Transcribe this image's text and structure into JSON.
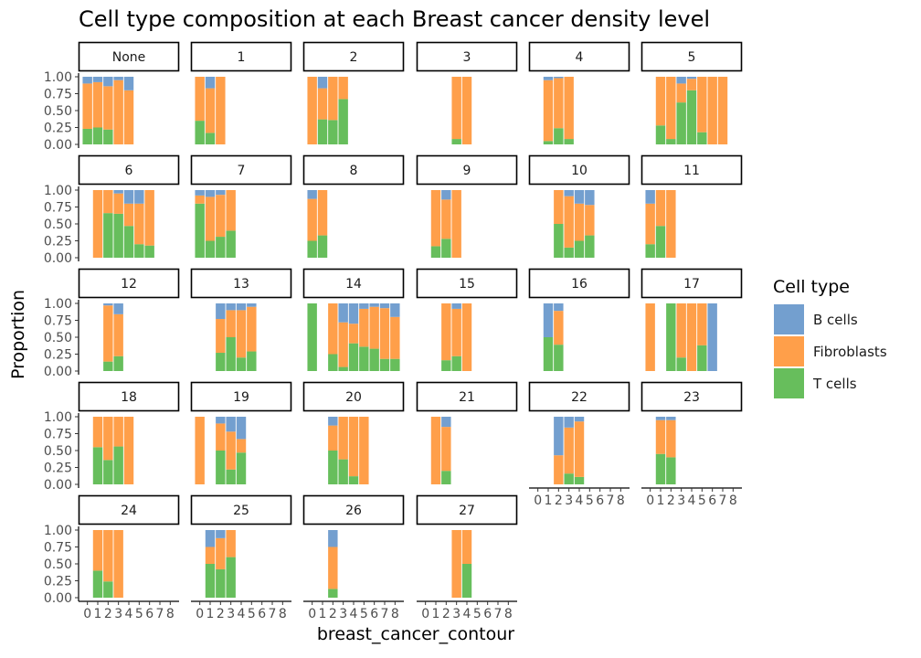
{
  "chart_data": {
    "type": "bar",
    "title": "Cell type composition at each Breast cancer density level",
    "xlabel": "breast_cancer_contour",
    "ylabel": "Proportion",
    "ylim": [
      0,
      1
    ],
    "yticks": [
      "0.00",
      "0.25",
      "0.50",
      "0.75",
      "1.00"
    ],
    "x_categories": [
      "0",
      "1",
      "2",
      "3",
      "4",
      "5",
      "6",
      "7",
      "8"
    ],
    "stacking_order_bottom_to_top": [
      "T cells",
      "Fibroblasts",
      "B cells"
    ],
    "legend": {
      "title": "Cell type",
      "position": "right",
      "entries": [
        {
          "name": "B cells",
          "color": "#739FCF"
        },
        {
          "name": "Fibroblasts",
          "color": "#FF9F4A"
        },
        {
          "name": "T cells",
          "color": "#67BE5C"
        }
      ]
    },
    "facet_layout": {
      "columns": 6,
      "rows": 5
    },
    "panels": [
      {
        "label": "None",
        "bars": [
          {
            "x": 0,
            "t": 0.23,
            "f": 0.67,
            "b": 0.1
          },
          {
            "x": 1,
            "t": 0.25,
            "f": 0.67,
            "b": 0.08
          },
          {
            "x": 2,
            "t": 0.22,
            "f": 0.64,
            "b": 0.14
          },
          {
            "x": 3,
            "t": 0.0,
            "f": 0.95,
            "b": 0.05
          },
          {
            "x": 4,
            "t": 0.0,
            "f": 0.8,
            "b": 0.2
          }
        ]
      },
      {
        "label": "1",
        "bars": [
          {
            "x": 0,
            "t": 0.35,
            "f": 0.65,
            "b": 0.0
          },
          {
            "x": 1,
            "t": 0.17,
            "f": 0.66,
            "b": 0.17
          },
          {
            "x": 2,
            "t": 0.0,
            "f": 1.0,
            "b": 0.0
          }
        ]
      },
      {
        "label": "2",
        "bars": [
          {
            "x": 0,
            "t": 0.0,
            "f": 1.0,
            "b": 0.0
          },
          {
            "x": 1,
            "t": 0.37,
            "f": 0.46,
            "b": 0.17
          },
          {
            "x": 2,
            "t": 0.36,
            "f": 0.64,
            "b": 0.0
          },
          {
            "x": 3,
            "t": 0.67,
            "f": 0.33,
            "b": 0.0
          }
        ]
      },
      {
        "label": "3",
        "bars": [
          {
            "x": 3,
            "t": 0.08,
            "f": 0.92,
            "b": 0.0
          },
          {
            "x": 4,
            "t": 0.0,
            "f": 1.0,
            "b": 0.0
          }
        ]
      },
      {
        "label": "4",
        "bars": [
          {
            "x": 1,
            "t": 0.05,
            "f": 0.9,
            "b": 0.05
          },
          {
            "x": 2,
            "t": 0.24,
            "f": 0.74,
            "b": 0.02
          },
          {
            "x": 3,
            "t": 0.08,
            "f": 0.92,
            "b": 0.0
          }
        ]
      },
      {
        "label": "5",
        "bars": [
          {
            "x": 1,
            "t": 0.28,
            "f": 0.72,
            "b": 0.0
          },
          {
            "x": 2,
            "t": 0.08,
            "f": 0.92,
            "b": 0.0
          },
          {
            "x": 3,
            "t": 0.62,
            "f": 0.28,
            "b": 0.1
          },
          {
            "x": 4,
            "t": 0.8,
            "f": 0.17,
            "b": 0.03
          },
          {
            "x": 5,
            "t": 0.18,
            "f": 0.82,
            "b": 0.0
          },
          {
            "x": 6,
            "t": 0.0,
            "f": 1.0,
            "b": 0.0
          },
          {
            "x": 7,
            "t": 0.0,
            "f": 1.0,
            "b": 0.0
          }
        ]
      },
      {
        "label": "6",
        "bars": [
          {
            "x": 1,
            "t": 0.0,
            "f": 1.0,
            "b": 0.0
          },
          {
            "x": 2,
            "t": 0.66,
            "f": 0.34,
            "b": 0.0
          },
          {
            "x": 3,
            "t": 0.65,
            "f": 0.3,
            "b": 0.05
          },
          {
            "x": 4,
            "t": 0.47,
            "f": 0.33,
            "b": 0.2
          },
          {
            "x": 5,
            "t": 0.2,
            "f": 0.6,
            "b": 0.2
          },
          {
            "x": 6,
            "t": 0.18,
            "f": 0.82,
            "b": 0.0
          }
        ]
      },
      {
        "label": "7",
        "bars": [
          {
            "x": 0,
            "t": 0.8,
            "f": 0.12,
            "b": 0.08
          },
          {
            "x": 1,
            "t": 0.25,
            "f": 0.65,
            "b": 0.1
          },
          {
            "x": 2,
            "t": 0.31,
            "f": 0.62,
            "b": 0.07
          },
          {
            "x": 3,
            "t": 0.4,
            "f": 0.6,
            "b": 0.0
          }
        ]
      },
      {
        "label": "8",
        "bars": [
          {
            "x": 0,
            "t": 0.25,
            "f": 0.62,
            "b": 0.13
          },
          {
            "x": 1,
            "t": 0.33,
            "f": 0.67,
            "b": 0.0
          }
        ]
      },
      {
        "label": "9",
        "bars": [
          {
            "x": 1,
            "t": 0.17,
            "f": 0.83,
            "b": 0.0
          },
          {
            "x": 2,
            "t": 0.28,
            "f": 0.58,
            "b": 0.14
          },
          {
            "x": 3,
            "t": 0.0,
            "f": 1.0,
            "b": 0.0
          }
        ]
      },
      {
        "label": "10",
        "bars": [
          {
            "x": 2,
            "t": 0.5,
            "f": 0.5,
            "b": 0.0
          },
          {
            "x": 3,
            "t": 0.15,
            "f": 0.76,
            "b": 0.09
          },
          {
            "x": 4,
            "t": 0.25,
            "f": 0.55,
            "b": 0.2
          },
          {
            "x": 5,
            "t": 0.33,
            "f": 0.45,
            "b": 0.22
          }
        ]
      },
      {
        "label": "11",
        "bars": [
          {
            "x": 0,
            "t": 0.2,
            "f": 0.6,
            "b": 0.2
          },
          {
            "x": 1,
            "t": 0.47,
            "f": 0.53,
            "b": 0.0
          },
          {
            "x": 2,
            "t": 0.0,
            "f": 1.0,
            "b": 0.0
          }
        ]
      },
      {
        "label": "12",
        "bars": [
          {
            "x": 2,
            "t": 0.14,
            "f": 0.83,
            "b": 0.03
          },
          {
            "x": 3,
            "t": 0.22,
            "f": 0.62,
            "b": 0.16
          }
        ]
      },
      {
        "label": "13",
        "bars": [
          {
            "x": 2,
            "t": 0.27,
            "f": 0.5,
            "b": 0.23
          },
          {
            "x": 3,
            "t": 0.5,
            "f": 0.4,
            "b": 0.1
          },
          {
            "x": 4,
            "t": 0.2,
            "f": 0.7,
            "b": 0.1
          },
          {
            "x": 5,
            "t": 0.29,
            "f": 0.66,
            "b": 0.05
          }
        ]
      },
      {
        "label": "14",
        "bars": [
          {
            "x": 0,
            "t": 1.0,
            "f": 0.0,
            "b": 0.0
          },
          {
            "x": 2,
            "t": 0.25,
            "f": 0.75,
            "b": 0.0
          },
          {
            "x": 3,
            "t": 0.06,
            "f": 0.66,
            "b": 0.28
          },
          {
            "x": 4,
            "t": 0.41,
            "f": 0.29,
            "b": 0.3
          },
          {
            "x": 5,
            "t": 0.36,
            "f": 0.56,
            "b": 0.08
          },
          {
            "x": 6,
            "t": 0.33,
            "f": 0.62,
            "b": 0.05
          },
          {
            "x": 7,
            "t": 0.18,
            "f": 0.75,
            "b": 0.07
          },
          {
            "x": 8,
            "t": 0.18,
            "f": 0.62,
            "b": 0.2
          }
        ]
      },
      {
        "label": "15",
        "bars": [
          {
            "x": 2,
            "t": 0.16,
            "f": 0.84,
            "b": 0.0
          },
          {
            "x": 3,
            "t": 0.22,
            "f": 0.7,
            "b": 0.08
          },
          {
            "x": 4,
            "t": 0.0,
            "f": 1.0,
            "b": 0.0
          }
        ]
      },
      {
        "label": "16",
        "bars": [
          {
            "x": 1,
            "t": 0.5,
            "f": 0.0,
            "b": 0.5
          },
          {
            "x": 2,
            "t": 0.39,
            "f": 0.5,
            "b": 0.11
          }
        ]
      },
      {
        "label": "17",
        "bars": [
          {
            "x": 0,
            "t": 0.0,
            "f": 1.0,
            "b": 0.0
          },
          {
            "x": 2,
            "t": 1.0,
            "f": 0.0,
            "b": 0.0
          },
          {
            "x": 3,
            "t": 0.2,
            "f": 0.8,
            "b": 0.0
          },
          {
            "x": 4,
            "t": 0.0,
            "f": 1.0,
            "b": 0.0
          },
          {
            "x": 5,
            "t": 0.38,
            "f": 0.62,
            "b": 0.0
          },
          {
            "x": 6,
            "t": 0.0,
            "f": 0.0,
            "b": 1.0
          }
        ]
      },
      {
        "label": "18",
        "bars": [
          {
            "x": 1,
            "t": 0.55,
            "f": 0.45,
            "b": 0.0
          },
          {
            "x": 2,
            "t": 0.36,
            "f": 0.64,
            "b": 0.0
          },
          {
            "x": 3,
            "t": 0.56,
            "f": 0.44,
            "b": 0.0
          },
          {
            "x": 4,
            "t": 0.0,
            "f": 1.0,
            "b": 0.0
          }
        ]
      },
      {
        "label": "19",
        "bars": [
          {
            "x": 0,
            "t": 0.0,
            "f": 1.0,
            "b": 0.0
          },
          {
            "x": 2,
            "t": 0.5,
            "f": 0.4,
            "b": 0.1
          },
          {
            "x": 3,
            "t": 0.22,
            "f": 0.56,
            "b": 0.22
          },
          {
            "x": 4,
            "t": 0.47,
            "f": 0.2,
            "b": 0.33
          }
        ]
      },
      {
        "label": "20",
        "bars": [
          {
            "x": 2,
            "t": 0.5,
            "f": 0.37,
            "b": 0.13
          },
          {
            "x": 3,
            "t": 0.37,
            "f": 0.63,
            "b": 0.0
          },
          {
            "x": 4,
            "t": 0.12,
            "f": 0.88,
            "b": 0.0
          },
          {
            "x": 5,
            "t": 0.0,
            "f": 1.0,
            "b": 0.0
          }
        ]
      },
      {
        "label": "21",
        "bars": [
          {
            "x": 1,
            "t": 0.0,
            "f": 1.0,
            "b": 0.0
          },
          {
            "x": 2,
            "t": 0.2,
            "f": 0.65,
            "b": 0.15
          }
        ]
      },
      {
        "label": "22",
        "bars": [
          {
            "x": 2,
            "t": 0.0,
            "f": 0.43,
            "b": 0.57
          },
          {
            "x": 3,
            "t": 0.16,
            "f": 0.68,
            "b": 0.16
          },
          {
            "x": 4,
            "t": 0.11,
            "f": 0.82,
            "b": 0.07
          }
        ]
      },
      {
        "label": "23",
        "bars": [
          {
            "x": 1,
            "t": 0.45,
            "f": 0.5,
            "b": 0.05
          },
          {
            "x": 2,
            "t": 0.4,
            "f": 0.55,
            "b": 0.05
          }
        ]
      },
      {
        "label": "24",
        "bars": [
          {
            "x": 1,
            "t": 0.4,
            "f": 0.6,
            "b": 0.0
          },
          {
            "x": 2,
            "t": 0.24,
            "f": 0.76,
            "b": 0.0
          },
          {
            "x": 3,
            "t": 0.0,
            "f": 1.0,
            "b": 0.0
          }
        ]
      },
      {
        "label": "25",
        "bars": [
          {
            "x": 1,
            "t": 0.5,
            "f": 0.25,
            "b": 0.25
          },
          {
            "x": 2,
            "t": 0.42,
            "f": 0.46,
            "b": 0.12
          },
          {
            "x": 3,
            "t": 0.6,
            "f": 0.4,
            "b": 0.0
          }
        ]
      },
      {
        "label": "26",
        "bars": [
          {
            "x": 2,
            "t": 0.13,
            "f": 0.62,
            "b": 0.25
          }
        ]
      },
      {
        "label": "27",
        "bars": [
          {
            "x": 3,
            "t": 0.0,
            "f": 1.0,
            "b": 0.0
          },
          {
            "x": 4,
            "t": 0.5,
            "f": 0.5,
            "b": 0.0
          }
        ]
      }
    ]
  }
}
